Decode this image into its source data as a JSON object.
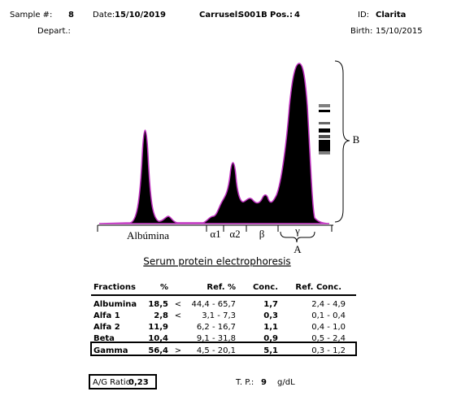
{
  "header": {
    "sample_label": "Sample #:",
    "sample": "8",
    "date_label": "Date:",
    "date": "15/10/2019",
    "carousel_label": "Carrusel:",
    "carousel": "S001B",
    "pos_label": "Pos.:",
    "pos": "4",
    "id_label": "ID:",
    "id": "Clarita",
    "depart_label": "Depart.:",
    "birth_label": "Birth:",
    "birth": "15/10/2015"
  },
  "electropherogram": {
    "fractions": [
      "Albúmina",
      "α1",
      "α2",
      "β",
      "γ"
    ],
    "annotation_a": "A",
    "annotation_b": "B"
  },
  "title": "Serum protein electrophoresis",
  "table": {
    "headers": [
      "Fractions",
      "%",
      "Ref. %",
      "Conc.",
      "Ref. Conc."
    ],
    "rows": [
      {
        "name": "Albumina",
        "percent": "18,5",
        "flag": "<",
        "ref_percent": "44,4 - 65,7",
        "conc": "1,7",
        "ref_conc": "2,4 - 4,9"
      },
      {
        "name": "Alfa 1",
        "percent": "2,8",
        "flag": "<",
        "ref_percent": "3,1 - 7,3",
        "conc": "0,3",
        "ref_conc": "0,1 - 0,4"
      },
      {
        "name": "Alfa 2",
        "percent": "11,9",
        "ref_percent": "6,2 - 16,7",
        "conc": "1,1",
        "ref_conc": "0,4 - 1,0"
      },
      {
        "name": "Beta",
        "percent": "10,4",
        "ref_percent": "9,1 - 31,8",
        "conc": "0,9",
        "ref_conc": "0,5 - 2,4"
      },
      {
        "name": "Gamma",
        "percent": "56,4",
        "flag": ">",
        "ref_percent": "4,5 - 20,1",
        "conc": "5,1",
        "ref_conc": "0,3 - 1,2"
      }
    ]
  },
  "footer": {
    "ag_label": "A/G Ratio:",
    "ag": "0,23",
    "tp_label": "T. P.:",
    "tp": "9",
    "tp_unit": "g/dL"
  }
}
